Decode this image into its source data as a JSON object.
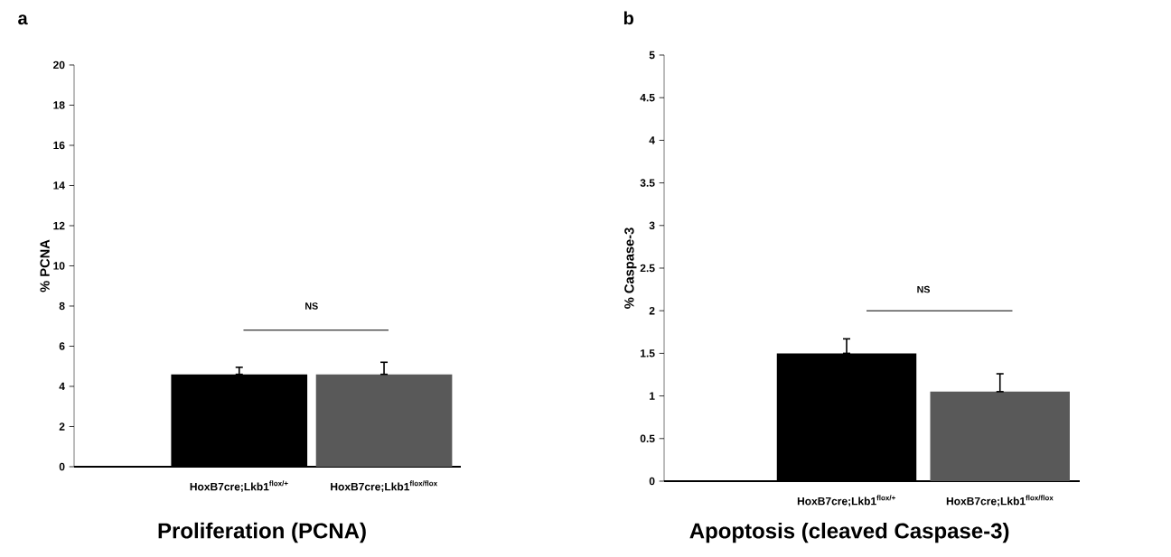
{
  "chart_data": [
    {
      "type": "bar",
      "title": "Proliferation (PCNA)",
      "ylabel": "% PCNA",
      "categories": [
        "HoxB7cre;Lkb1$^{flox/+}$",
        "HoxB7cre;Lkb1$^{flox/flox}$"
      ],
      "values": [
        4.6,
        4.6
      ],
      "colors": [
        "#000000",
        "#595959"
      ],
      "errors": [
        [
          4.6,
          4.95
        ],
        [
          4.6,
          5.2
        ]
      ],
      "ylim": [
        0,
        20
      ],
      "yticks": [
        0,
        2,
        4,
        6,
        8,
        10,
        12,
        14,
        16,
        18,
        20
      ],
      "annotations": [
        "a",
        "NS"
      ]
    },
    {
      "type": "bar",
      "title": "Apoptosis (cleaved Caspase-3)",
      "ylabel": "% Caspase-3",
      "categories": [
        "HoxB7cre;Lkb1$^{flox/+}$",
        "HoxB7cre;Lkb1$^{flox/flox}$"
      ],
      "values": [
        1.5,
        1.05
      ],
      "colors": [
        "#000000",
        "#595959"
      ],
      "errors": [
        [
          1.5,
          1.67
        ],
        [
          1.05,
          1.26
        ]
      ],
      "ylim": [
        0,
        5
      ],
      "yticks": [
        0,
        0.5,
        1,
        1.5,
        2,
        2.5,
        3,
        3.5,
        4,
        4.5,
        5
      ],
      "annotations": [
        "b",
        "NS"
      ]
    }
  ]
}
